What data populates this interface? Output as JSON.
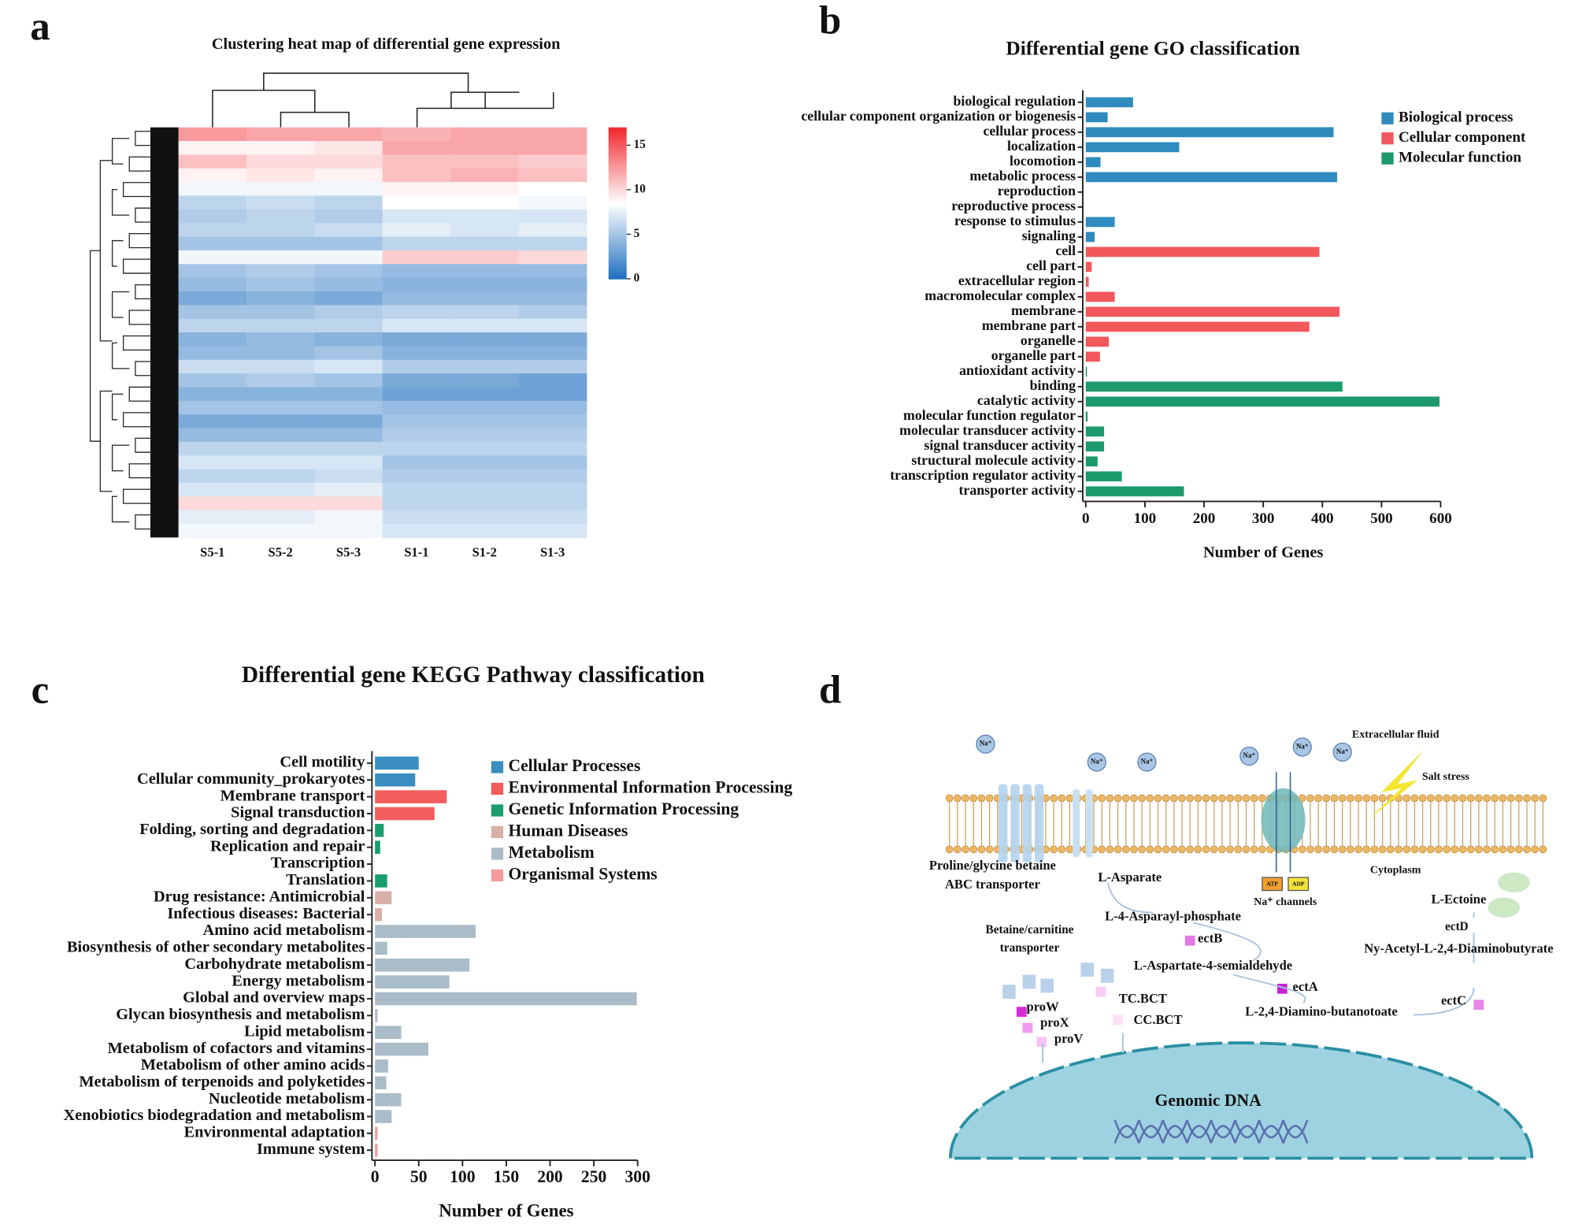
{
  "panels": [
    "a",
    "b",
    "c",
    "d"
  ],
  "chart_data": [
    {
      "type": "heatmap",
      "title": "Clustering heat map of differential gene expression",
      "x": [
        "S5-1",
        "S5-2",
        "S5-3",
        "S1-1",
        "S1-2",
        "S1-3"
      ],
      "z": [
        [
          12.5,
          12,
          12,
          11.5,
          12,
          12
        ],
        [
          9,
          9,
          9.5,
          12,
          12,
          12
        ],
        [
          11,
          10,
          10,
          11,
          11,
          10.5
        ],
        [
          9,
          9.5,
          9,
          11,
          11.5,
          11
        ],
        [
          8,
          8,
          8,
          9,
          9,
          8.5
        ],
        [
          6,
          6.5,
          6,
          8.5,
          8.5,
          8
        ],
        [
          5.5,
          6,
          5.5,
          7,
          7,
          7
        ],
        [
          6,
          6,
          6.5,
          7.5,
          7,
          7.5
        ],
        [
          5,
          5,
          5,
          6,
          6,
          6
        ],
        [
          8,
          8,
          8,
          10.5,
          10.5,
          10
        ],
        [
          5,
          5.5,
          5,
          4.5,
          4.5,
          4.5
        ],
        [
          4.5,
          5,
          4.5,
          4,
          4,
          4
        ],
        [
          3.5,
          4,
          3.5,
          4.5,
          4.5,
          4.5
        ],
        [
          5,
          5,
          5.5,
          6,
          6,
          5.5
        ],
        [
          6,
          6,
          6,
          7,
          7,
          7
        ],
        [
          4,
          4.5,
          4,
          3.5,
          3.5,
          3.5
        ],
        [
          4.5,
          4.5,
          5,
          4,
          4,
          4
        ],
        [
          6.5,
          6.5,
          7,
          5.5,
          5.5,
          5.5
        ],
        [
          5,
          5.5,
          5,
          3.5,
          3.5,
          3
        ],
        [
          4,
          4,
          4,
          3,
          3,
          3
        ],
        [
          5,
          5,
          5,
          4.5,
          4.5,
          4.5
        ],
        [
          3.5,
          3.5,
          3.5,
          5,
          5,
          5
        ],
        [
          4.5,
          4.5,
          4.5,
          5.5,
          5.5,
          5.5
        ],
        [
          6,
          6,
          6,
          6,
          6,
          6
        ],
        [
          7,
          7,
          7,
          5,
          5,
          5
        ],
        [
          6,
          6,
          6.5,
          5.5,
          5.5,
          5.5
        ],
        [
          7,
          7,
          7.5,
          6,
          6,
          6
        ],
        [
          10,
          10,
          10,
          6,
          6,
          6
        ],
        [
          7.5,
          7.5,
          8,
          6.5,
          6.5,
          6.5
        ],
        [
          8,
          8,
          8,
          7,
          7,
          7
        ]
      ],
      "zlim": [
        0,
        17
      ],
      "zticks": [
        0,
        5,
        10,
        15
      ],
      "colors": [
        "#1f6fbf",
        "#ffffff",
        "#f0282e"
      ]
    },
    {
      "type": "hbar",
      "title": "Differential gene GO classification",
      "xlabel": "Number of Genes",
      "categories": [
        "biological regulation",
        "cellular component organization or biogenesis",
        "cellular process",
        "localization",
        "locomotion",
        "metabolic process",
        "reproduction",
        "reproductive process",
        "response to stimulus",
        "signaling",
        "cell",
        "cell part",
        "extracellular region",
        "macromolecular complex",
        "membrane",
        "membrane part",
        "organelle",
        "organelle part",
        "antioxidant activity",
        "binding",
        "catalytic activity",
        "molecular function regulator",
        "molecular transducer activity",
        "signal transducer activity",
        "structural molecule activity",
        "transcription regulator activity",
        "transporter activity"
      ],
      "series": [
        {
          "name": "Biological process",
          "color": "#2f8bbd",
          "values": [
            80,
            37,
            419,
            158,
            25,
            425,
            0,
            0,
            49,
            15,
            null,
            null,
            null,
            null,
            null,
            null,
            null,
            null,
            null,
            null,
            null,
            null,
            null,
            null,
            null,
            null,
            null
          ]
        },
        {
          "name": "Cellular component",
          "color": "#f2575b",
          "values": [
            null,
            null,
            null,
            null,
            null,
            null,
            null,
            null,
            null,
            null,
            395,
            10,
            5,
            49,
            429,
            378,
            39,
            24,
            null,
            null,
            null,
            null,
            null,
            null,
            null,
            null,
            null
          ]
        },
        {
          "name": "Molecular function",
          "color": "#1c9a6c",
          "values": [
            null,
            null,
            null,
            null,
            null,
            null,
            null,
            null,
            null,
            null,
            null,
            null,
            null,
            null,
            null,
            null,
            null,
            null,
            2,
            434,
            598,
            3,
            31,
            31,
            20,
            61,
            166
          ]
        }
      ],
      "xlim": [
        0,
        600
      ],
      "xticks": [
        0,
        100,
        200,
        300,
        400,
        500,
        600
      ]
    },
    {
      "type": "hbar",
      "title": "Differential gene KEGG Pathway classification",
      "xlabel": "Number of Genes",
      "categories": [
        "Cell motility",
        "Cellular community_prokaryotes",
        "Membrane transport",
        "Signal transduction",
        "Folding, sorting and degradation",
        "Replication and repair",
        "Transcription",
        "Translation",
        "Drug resistance: Antimicrobial",
        "Infectious diseases: Bacterial",
        "Amino acid metabolism",
        "Biosynthesis of other secondary metabolites",
        "Carbohydrate metabolism",
        "Energy metabolism",
        "Global and overview maps",
        "Glycan biosynthesis and metabolism",
        "Lipid metabolism",
        "Metabolism of cofactors and vitamins",
        "Metabolism of other amino acids",
        "Metabolism of terpenoids and polyketides",
        "Nucleotide metabolism",
        "Xenobiotics biodegradation and metabolism",
        "Environmental adaptation",
        "Immune system"
      ],
      "series": [
        {
          "name": "Cellular Processes",
          "color": "#3a8fc0",
          "values": [
            50,
            46,
            null,
            null,
            null,
            null,
            null,
            null,
            null,
            null,
            null,
            null,
            null,
            null,
            null,
            null,
            null,
            null,
            null,
            null,
            null,
            null,
            null,
            null
          ]
        },
        {
          "name": "Environmental Information Processing",
          "color": "#f25d5d",
          "values": [
            null,
            null,
            82,
            68,
            null,
            null,
            null,
            null,
            null,
            null,
            null,
            null,
            null,
            null,
            null,
            null,
            null,
            null,
            null,
            null,
            null,
            null,
            null,
            null
          ]
        },
        {
          "name": "Genetic Information Processing",
          "color": "#1a9e6e",
          "values": [
            null,
            null,
            null,
            null,
            10,
            6,
            0,
            14,
            null,
            null,
            null,
            null,
            null,
            null,
            null,
            null,
            null,
            null,
            null,
            null,
            null,
            null,
            null,
            null
          ]
        },
        {
          "name": "Human Diseases",
          "color": "#d8b0a8",
          "values": [
            null,
            null,
            null,
            null,
            null,
            null,
            null,
            null,
            19,
            8,
            null,
            null,
            null,
            null,
            null,
            null,
            null,
            null,
            null,
            null,
            null,
            null,
            null,
            null
          ]
        },
        {
          "name": "Metabolism",
          "color": "#a9bcc8",
          "values": [
            null,
            null,
            null,
            null,
            null,
            null,
            null,
            null,
            null,
            null,
            115,
            14,
            108,
            85,
            299,
            3,
            30,
            61,
            15,
            13,
            30,
            19,
            null,
            null
          ]
        },
        {
          "name": "Organismal Systems",
          "color": "#f49a9a",
          "values": [
            null,
            null,
            null,
            null,
            null,
            null,
            null,
            null,
            null,
            null,
            null,
            null,
            null,
            null,
            null,
            null,
            null,
            null,
            null,
            null,
            null,
            null,
            3,
            3
          ]
        }
      ],
      "xlim": [
        0,
        300
      ],
      "xticks": [
        0,
        50,
        100,
        150,
        200,
        250,
        300
      ]
    }
  ],
  "diagram": {
    "labels": [
      "Extracellular fluid",
      "Salt stress",
      "Cytoplasm",
      "Proline/glycine betaine",
      "ABC transporter",
      "L-Asparate",
      "L-4-Asparayl-phosphate",
      "ectB",
      "Betaine/carnitine",
      "transporter",
      "L-Aspartate-4-semialdehyde",
      "ectA",
      "L-2,4-Diamino-butanotoate",
      "ectC",
      "L-Ectoine",
      "ectD",
      "Ny-Acetyl-L-2,4-Diaminobutyrate",
      "proW",
      "proX",
      "proV",
      "TC.BCT",
      "CC.BCT",
      "Genomic DNA",
      "Na⁺ channels",
      "ATP",
      "ADP"
    ],
    "ions": [
      "Na⁺",
      "Na⁺",
      "Na⁺",
      "Na⁺",
      "Na⁺",
      "Na⁺"
    ]
  }
}
